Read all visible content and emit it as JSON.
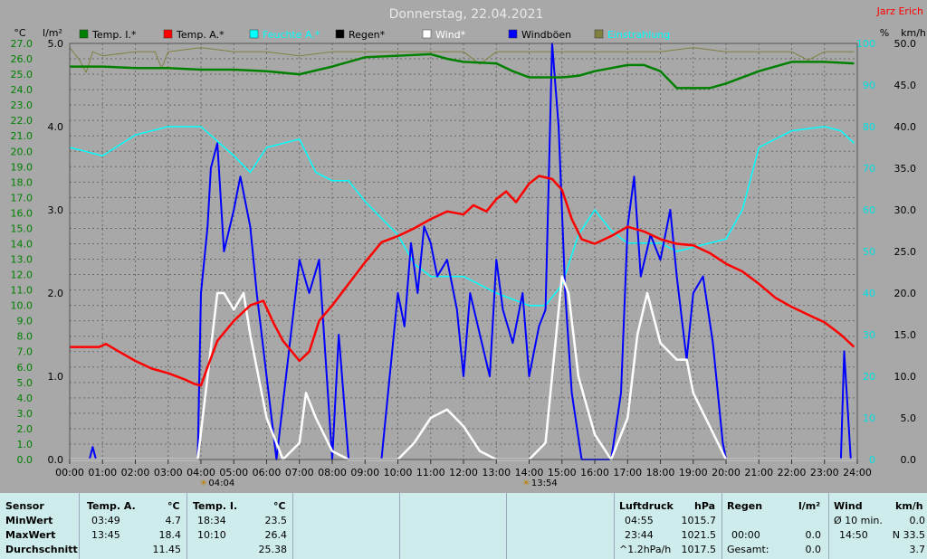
{
  "title": "Donnerstag, 22.04.2021",
  "author": "Jarz Erich",
  "legend": [
    {
      "label": "Temp. I.*",
      "color": "#008000"
    },
    {
      "label": "Temp. A.*",
      "color": "#ff0000"
    },
    {
      "label": "Feuchte A.*",
      "color": "#00ffff"
    },
    {
      "label": "Regen*",
      "color": "#000000"
    },
    {
      "label": "Wind*",
      "color": "#ffffff"
    },
    {
      "label": "Windböen",
      "color": "#0000ff"
    },
    {
      "label": "Einstrahlung",
      "color": "#808040"
    }
  ],
  "axes": {
    "temp_unit": "°C",
    "rain_unit": "l/m²",
    "humidity_unit": "%",
    "wind_unit": "km/h",
    "temp_ticks": [
      "0.0",
      "1.0",
      "2.0",
      "3.0",
      "4.0",
      "5.0",
      "6.0",
      "7.0",
      "8.0",
      "9.0",
      "10.0",
      "11.0",
      "12.0",
      "13.0",
      "14.0",
      "15.0",
      "16.0",
      "17.0",
      "18.0",
      "19.0",
      "20.0",
      "21.0",
      "22.0",
      "23.0",
      "24.0",
      "25.0",
      "26.0",
      "27.0"
    ],
    "rain_ticks": [
      "0.0",
      "1.0",
      "2.0",
      "3.0",
      "4.0",
      "5.0"
    ],
    "humidity_ticks": [
      "0",
      "10",
      "20",
      "30",
      "40",
      "50",
      "60",
      "70",
      "80",
      "90",
      "100"
    ],
    "wind_ticks": [
      "0.0",
      "5.0",
      "10.0",
      "15.0",
      "20.0",
      "25.0",
      "30.0",
      "35.0",
      "40.0",
      "45.0",
      "50.0"
    ],
    "x_ticks": [
      "00:00",
      "01:00",
      "02:00",
      "03:00",
      "04:00",
      "05:00",
      "06:00",
      "07:00",
      "08:00",
      "09:00",
      "10:00",
      "11:00",
      "12:00",
      "13:00",
      "14:00",
      "15:00",
      "16:00",
      "17:00",
      "18:00",
      "19:00",
      "20:00",
      "21:00",
      "22:00",
      "23:00",
      "24:00"
    ],
    "sunrise": "04:04",
    "sunset": "13:54"
  },
  "chart_data": {
    "type": "line",
    "title": "Donnerstag, 22.04.2021",
    "x_unit": "hours",
    "temp_range": [
      0,
      27
    ],
    "rain_range": [
      0,
      5
    ],
    "humidity_range": [
      0,
      100
    ],
    "wind_range": [
      0,
      50
    ],
    "series": [
      {
        "name": "Temp. I.*",
        "axis": "temp",
        "color": "#008000",
        "points": [
          [
            0,
            25.5
          ],
          [
            1,
            25.5
          ],
          [
            2,
            25.4
          ],
          [
            3,
            25.4
          ],
          [
            4,
            25.3
          ],
          [
            5,
            25.3
          ],
          [
            6,
            25.2
          ],
          [
            7,
            25.0
          ],
          [
            8,
            25.5
          ],
          [
            9,
            26.1
          ],
          [
            10,
            26.2
          ],
          [
            11,
            26.3
          ],
          [
            11.5,
            26.0
          ],
          [
            12,
            25.8
          ],
          [
            13,
            25.7
          ],
          [
            13.5,
            25.2
          ],
          [
            14,
            24.8
          ],
          [
            15,
            24.8
          ],
          [
            15.5,
            24.9
          ],
          [
            16,
            25.2
          ],
          [
            17,
            25.6
          ],
          [
            17.5,
            25.6
          ],
          [
            18,
            25.2
          ],
          [
            18.5,
            24.1
          ],
          [
            19,
            24.1
          ],
          [
            19.5,
            24.1
          ],
          [
            20,
            24.4
          ],
          [
            21,
            25.2
          ],
          [
            22,
            25.8
          ],
          [
            23,
            25.8
          ],
          [
            23.9,
            25.7
          ]
        ]
      },
      {
        "name": "Temp. A.*",
        "axis": "temp",
        "color": "#ff0000",
        "points": [
          [
            0,
            7.3
          ],
          [
            0.9,
            7.3
          ],
          [
            1.1,
            7.5
          ],
          [
            1.5,
            7.0
          ],
          [
            2,
            6.4
          ],
          [
            2.5,
            5.9
          ],
          [
            3,
            5.6
          ],
          [
            3.5,
            5.2
          ],
          [
            3.8,
            4.9
          ],
          [
            4,
            4.8
          ],
          [
            4.2,
            6.0
          ],
          [
            4.5,
            7.7
          ],
          [
            5,
            9.0
          ],
          [
            5.5,
            10.0
          ],
          [
            5.9,
            10.3
          ],
          [
            6.2,
            8.9
          ],
          [
            6.5,
            7.7
          ],
          [
            7,
            6.4
          ],
          [
            7.3,
            7.0
          ],
          [
            7.6,
            9.0
          ],
          [
            8,
            10.0
          ],
          [
            8.5,
            11.4
          ],
          [
            9,
            12.8
          ],
          [
            9.5,
            14.1
          ],
          [
            10,
            14.5
          ],
          [
            10.5,
            15.0
          ],
          [
            11,
            15.6
          ],
          [
            11.5,
            16.1
          ],
          [
            12,
            15.9
          ],
          [
            12.3,
            16.5
          ],
          [
            12.7,
            16.1
          ],
          [
            13,
            16.9
          ],
          [
            13.3,
            17.4
          ],
          [
            13.6,
            16.7
          ],
          [
            14,
            17.9
          ],
          [
            14.3,
            18.4
          ],
          [
            14.7,
            18.2
          ],
          [
            15,
            17.5
          ],
          [
            15.3,
            15.6
          ],
          [
            15.6,
            14.3
          ],
          [
            16,
            14.0
          ],
          [
            16.5,
            14.5
          ],
          [
            17,
            15.1
          ],
          [
            17.5,
            14.8
          ],
          [
            18,
            14.3
          ],
          [
            18.5,
            14.0
          ],
          [
            19,
            13.9
          ],
          [
            19.5,
            13.4
          ],
          [
            20,
            12.7
          ],
          [
            20.5,
            12.2
          ],
          [
            21,
            11.4
          ],
          [
            21.5,
            10.5
          ],
          [
            22,
            9.9
          ],
          [
            22.5,
            9.4
          ],
          [
            23,
            8.9
          ],
          [
            23.5,
            8.1
          ],
          [
            23.9,
            7.3
          ]
        ]
      },
      {
        "name": "Feuchte A.*",
        "axis": "humidity",
        "color": "#00ffff",
        "points": [
          [
            0,
            75
          ],
          [
            1,
            73
          ],
          [
            2,
            78
          ],
          [
            3,
            80
          ],
          [
            4,
            80
          ],
          [
            5,
            73
          ],
          [
            5.5,
            69
          ],
          [
            6,
            75
          ],
          [
            7,
            77
          ],
          [
            7.5,
            69
          ],
          [
            8,
            67
          ],
          [
            8.5,
            67
          ],
          [
            9,
            62
          ],
          [
            10,
            54
          ],
          [
            10.5,
            47
          ],
          [
            11,
            44
          ],
          [
            12,
            44
          ],
          [
            13,
            40
          ],
          [
            14,
            37
          ],
          [
            14.5,
            37
          ],
          [
            15,
            42
          ],
          [
            15.5,
            54
          ],
          [
            16,
            60
          ],
          [
            16.5,
            55
          ],
          [
            17,
            52
          ],
          [
            18,
            52
          ],
          [
            18.5,
            50
          ],
          [
            19,
            51
          ],
          [
            20,
            53
          ],
          [
            20.5,
            60
          ],
          [
            21,
            75
          ],
          [
            22,
            79
          ],
          [
            23,
            80
          ],
          [
            23.5,
            79
          ],
          [
            23.9,
            76
          ]
        ]
      },
      {
        "name": "Regen*",
        "axis": "rain",
        "color": "#000000",
        "points": [
          [
            0,
            0
          ],
          [
            24,
            0
          ]
        ]
      },
      {
        "name": "Wind*",
        "axis": "wind",
        "color": "#ffffff",
        "points": [
          [
            0,
            0
          ],
          [
            3.9,
            0
          ],
          [
            4.2,
            10
          ],
          [
            4.5,
            20
          ],
          [
            4.7,
            20
          ],
          [
            5,
            18
          ],
          [
            5.3,
            20
          ],
          [
            5.5,
            15
          ],
          [
            6,
            5
          ],
          [
            6.5,
            0
          ],
          [
            7,
            2
          ],
          [
            7.2,
            8
          ],
          [
            7.5,
            5
          ],
          [
            8,
            1
          ],
          [
            8.5,
            0
          ],
          [
            10,
            0
          ],
          [
            10.5,
            2
          ],
          [
            11,
            5
          ],
          [
            11.5,
            6
          ],
          [
            12,
            4
          ],
          [
            12.5,
            1
          ],
          [
            13,
            0
          ],
          [
            13.5,
            0
          ],
          [
            14,
            0
          ],
          [
            14.5,
            2
          ],
          [
            15,
            22
          ],
          [
            15.2,
            20
          ],
          [
            15.5,
            10
          ],
          [
            16,
            3
          ],
          [
            16.5,
            0
          ],
          [
            17,
            5
          ],
          [
            17.3,
            15
          ],
          [
            17.6,
            20
          ],
          [
            18,
            14
          ],
          [
            18.5,
            12
          ],
          [
            18.8,
            12
          ],
          [
            19,
            8
          ],
          [
            19.5,
            4
          ],
          [
            20,
            0
          ],
          [
            24,
            0
          ]
        ]
      },
      {
        "name": "Windböen",
        "axis": "wind",
        "color": "#0000ff",
        "points": [
          [
            0,
            0
          ],
          [
            0.6,
            0
          ],
          [
            0.7,
            1.5
          ],
          [
            0.8,
            0
          ],
          [
            3.9,
            0
          ],
          [
            4.0,
            20
          ],
          [
            4.2,
            28
          ],
          [
            4.3,
            35
          ],
          [
            4.5,
            38
          ],
          [
            4.7,
            25
          ],
          [
            5,
            30
          ],
          [
            5.2,
            34
          ],
          [
            5.5,
            28
          ],
          [
            5.7,
            20
          ],
          [
            6,
            10
          ],
          [
            6.3,
            0
          ],
          [
            7,
            24
          ],
          [
            7.3,
            20
          ],
          [
            7.6,
            24
          ],
          [
            8,
            0
          ],
          [
            8.2,
            15
          ],
          [
            8.5,
            0
          ],
          [
            9.5,
            0
          ],
          [
            9.8,
            12
          ],
          [
            10,
            20
          ],
          [
            10.2,
            16
          ],
          [
            10.4,
            26
          ],
          [
            10.6,
            20
          ],
          [
            10.8,
            28
          ],
          [
            11,
            26
          ],
          [
            11.2,
            22
          ],
          [
            11.5,
            24
          ],
          [
            11.8,
            18
          ],
          [
            12,
            10
          ],
          [
            12.2,
            20
          ],
          [
            12.5,
            15
          ],
          [
            12.8,
            10
          ],
          [
            13,
            24
          ],
          [
            13.2,
            18
          ],
          [
            13.5,
            14
          ],
          [
            13.8,
            20
          ],
          [
            14,
            10
          ],
          [
            14.3,
            16
          ],
          [
            14.5,
            18
          ],
          [
            14.7,
            50
          ],
          [
            14.9,
            40
          ],
          [
            15.1,
            20
          ],
          [
            15.3,
            8
          ],
          [
            15.6,
            0
          ],
          [
            16.5,
            0
          ],
          [
            16.8,
            8
          ],
          [
            17.0,
            28
          ],
          [
            17.2,
            34
          ],
          [
            17.4,
            22
          ],
          [
            17.7,
            27
          ],
          [
            18,
            24
          ],
          [
            18.3,
            30
          ],
          [
            18.5,
            22
          ],
          [
            18.8,
            12
          ],
          [
            19,
            20
          ],
          [
            19.3,
            22
          ],
          [
            19.6,
            14
          ],
          [
            19.9,
            2
          ],
          [
            20,
            0
          ],
          [
            23.5,
            0
          ],
          [
            23.6,
            13
          ],
          [
            23.8,
            0
          ],
          [
            24,
            0
          ]
        ]
      },
      {
        "name": "Einstrahlung",
        "axis": "humidity",
        "color": "#808040",
        "points": [
          [
            0,
            99
          ],
          [
            0.3,
            96
          ],
          [
            0.5,
            93
          ],
          [
            0.7,
            98
          ],
          [
            1,
            97
          ],
          [
            2,
            98
          ],
          [
            2.6,
            98
          ],
          [
            2.8,
            94
          ],
          [
            3,
            98
          ],
          [
            4,
            99
          ],
          [
            5,
            98
          ],
          [
            6,
            98
          ],
          [
            7,
            97
          ],
          [
            8,
            98
          ],
          [
            9,
            98
          ],
          [
            10,
            98
          ],
          [
            11,
            98
          ],
          [
            12,
            98
          ],
          [
            12.5,
            95
          ],
          [
            13,
            98
          ],
          [
            14,
            98
          ],
          [
            15,
            98
          ],
          [
            16,
            98
          ],
          [
            17,
            98
          ],
          [
            18,
            98
          ],
          [
            19,
            99
          ],
          [
            20,
            98
          ],
          [
            21,
            98
          ],
          [
            22,
            98
          ],
          [
            22.5,
            96
          ],
          [
            23,
            98
          ],
          [
            23.9,
            98
          ]
        ]
      }
    ]
  },
  "table": {
    "row_labels": [
      "Sensor",
      "MinWert",
      "MaxWert",
      "Durchschnitt"
    ],
    "temp_a": {
      "header": "Temp. A.",
      "unit": "°C",
      "min_time": "03:49",
      "min": "4.7",
      "max_time": "13:45",
      "max": "18.4",
      "avg": "11.45"
    },
    "temp_i": {
      "header": "Temp. I.",
      "unit": "°C",
      "min_time": "18:34",
      "min": "23.5",
      "max_time": "10:10",
      "max": "26.4",
      "avg": "25.38"
    },
    "pressure": {
      "header": "Luftdruck",
      "unit": "hPa",
      "min_time": "04:55",
      "min": "1015.7",
      "max_time": "23:44",
      "max": "1021.5",
      "avg_label": "^1.2hPa/h",
      "avg": "1017.5"
    },
    "rain": {
      "header": "Regen",
      "unit": "l/m²",
      "r1_time": "00:00",
      "r1": "0.0",
      "total_label": "Gesamt:",
      "total": "0.0"
    },
    "wind": {
      "header": "Wind",
      "unit": "km/h",
      "avg_label": "Ø 10 min.",
      "avg": "0.0",
      "max_time": "14:50",
      "max": "N 33.5",
      "last": "3.7"
    }
  }
}
